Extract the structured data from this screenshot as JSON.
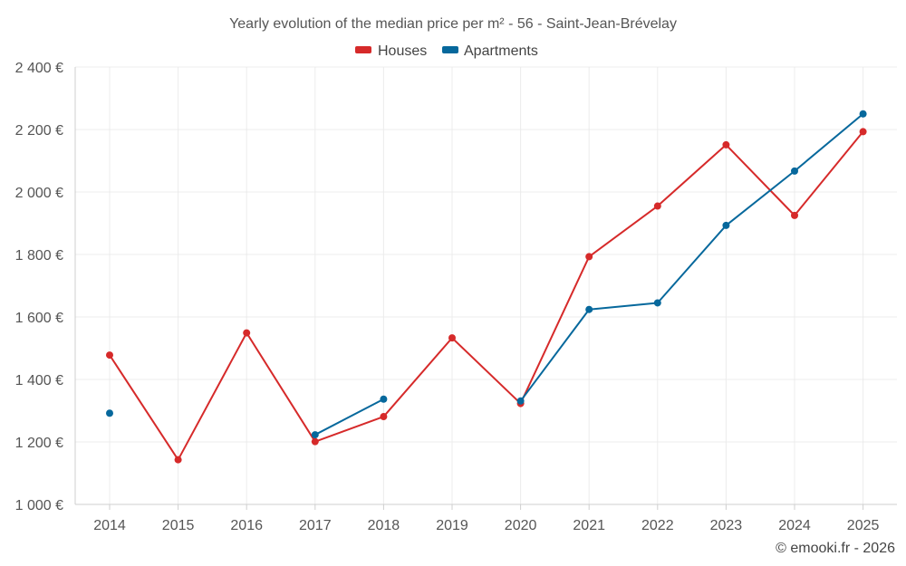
{
  "chart_data": {
    "type": "line",
    "title": "Yearly evolution of the median price per m² - 56 - Saint-Jean-Brévelay",
    "categories": [
      "2014",
      "2015",
      "2016",
      "2017",
      "2018",
      "2019",
      "2020",
      "2021",
      "2022",
      "2023",
      "2024",
      "2025"
    ],
    "series": [
      {
        "name": "Houses",
        "color": "#d62a2a",
        "values": [
          1478,
          1143,
          1549,
          1201,
          1281,
          1533,
          1323,
          1793,
          1955,
          2151,
          1925,
          2193
        ]
      },
      {
        "name": "Apartments",
        "color": "#06689c",
        "values": [
          1292,
          null,
          null,
          1223,
          1337,
          null,
          1331,
          1624,
          1645,
          1893,
          2067,
          2250
        ]
      }
    ],
    "y_ticks": [
      1000,
      1200,
      1400,
      1600,
      1800,
      2000,
      2200,
      2400
    ],
    "y_tick_labels": [
      "1 000 €",
      "1 200 €",
      "1 400 €",
      "1 600 €",
      "1 800 €",
      "2 000 €",
      "2 200 €",
      "2 400 €"
    ],
    "ylim": [
      1000,
      2400
    ],
    "xlabel": "",
    "ylabel": "",
    "legend_position": "top-center",
    "grid": true
  },
  "credit": "© emooki.fr - 2026"
}
